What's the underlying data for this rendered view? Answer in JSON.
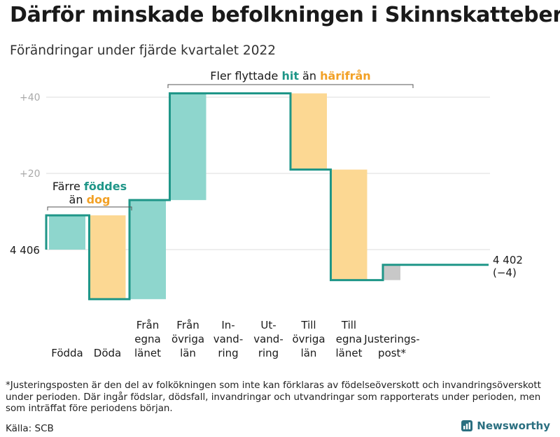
{
  "title": "Därför minskade befolkningen i Skinnskatteberg",
  "subtitle": "Förändringar under fjärde kvartalet 2022",
  "colors": {
    "increase": "#8ed6cd",
    "decrease": "#fcd893",
    "adjustment": "#c8c8c8",
    "line": "#1f9688",
    "teal_text": "#1f9688",
    "orange_text": "#f2a126",
    "grid": "#dddddd",
    "tick_text": "#aaaaaa"
  },
  "chart_data": {
    "type": "waterfall",
    "start_value": 4406,
    "start_label": "4 406",
    "end_value": 4402,
    "end_label": "4 402",
    "end_change_label": "(−4)",
    "y_ticks": [
      {
        "value": 20,
        "label": "+20"
      },
      {
        "value": 40,
        "label": "+40"
      }
    ],
    "ylim_relative": [
      -14,
      42
    ],
    "steps": [
      {
        "label": [
          "Födda"
        ],
        "delta": 9,
        "kind": "increase"
      },
      {
        "label": [
          "Döda"
        ],
        "delta": -22,
        "kind": "decrease"
      },
      {
        "label": [
          "Från",
          "egna",
          "länet"
        ],
        "delta": 26,
        "kind": "increase"
      },
      {
        "label": [
          "Från",
          "övriga",
          "län"
        ],
        "delta": 28,
        "kind": "increase"
      },
      {
        "label": [
          "In-",
          "vand-",
          "ring"
        ],
        "delta": 0,
        "kind": "increase"
      },
      {
        "label": [
          "Ut-",
          "vand-",
          "ring"
        ],
        "delta": 0,
        "kind": "decrease"
      },
      {
        "label": [
          "Till",
          "övriga",
          "län"
        ],
        "delta": -20,
        "kind": "decrease"
      },
      {
        "label": [
          "Till",
          "egna",
          "länet"
        ],
        "delta": -29,
        "kind": "decrease"
      },
      {
        "label": [
          "Justerings-",
          "post*"
        ],
        "delta": 4,
        "kind": "adjustment"
      }
    ],
    "annotations": {
      "birth_death": {
        "prefix": "Färre ",
        "teal": "föddes",
        "line2_prefix": "än ",
        "orange": "dog"
      },
      "migration": {
        "prefix": "Fler flyttade ",
        "teal": "hit",
        "middle": " än ",
        "orange": "härifrån"
      }
    }
  },
  "footnote": "*Justeringsposten är den del av folkökningen som inte kan förklaras av födelseöverskott och invandringsöverskott under perioden. Där ingår födslar, dödsfall, invandringar och utvandringar som rapporterats under perioden, men som inträffat före periodens början.",
  "source": "Källa: SCB",
  "brand": "Newsworthy"
}
